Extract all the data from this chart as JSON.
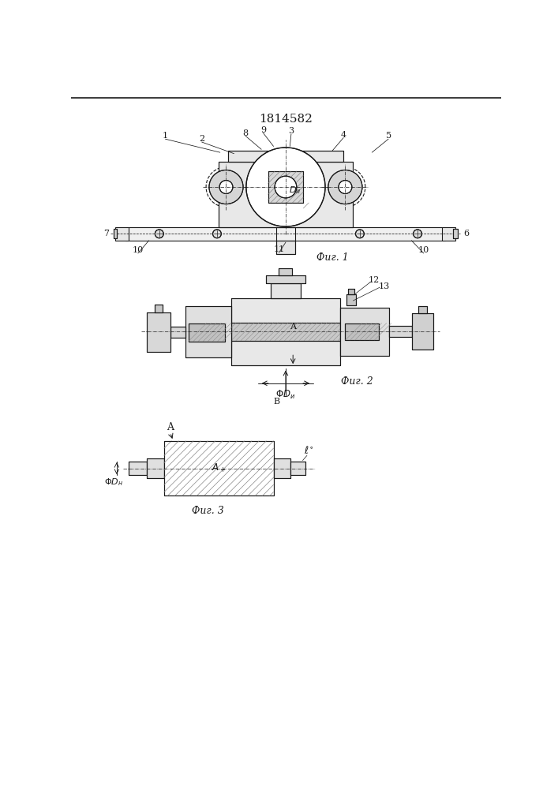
{
  "title": "1814582",
  "title_fontsize": 11,
  "bg_color": "#ffffff",
  "line_color": "#1a1a1a",
  "fig1_label": "Фиг. 1",
  "fig2_label": "Фиг. 2",
  "fig3_label": "Фиг. 3"
}
